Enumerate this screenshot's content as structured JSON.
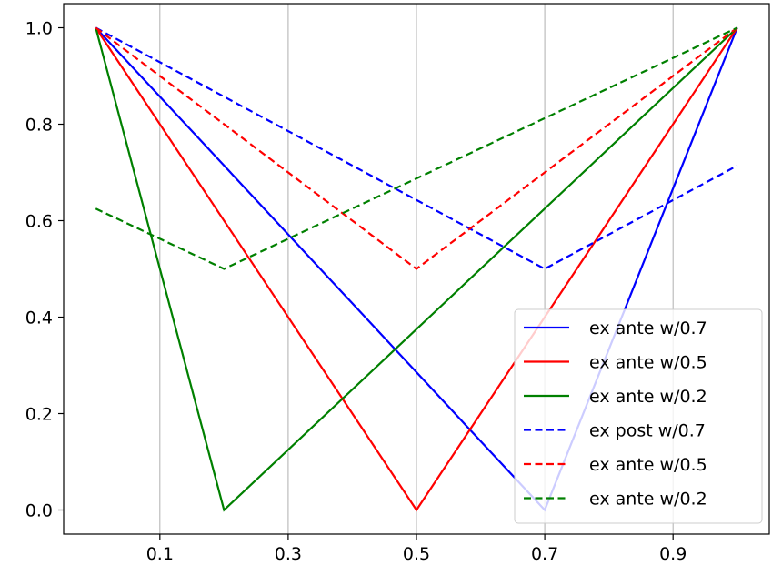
{
  "chart_data": {
    "type": "line",
    "title": "",
    "xlabel": "",
    "ylabel": "",
    "xlim": [
      -0.05,
      1.05
    ],
    "ylim": [
      -0.05,
      1.05
    ],
    "grid": "vertical",
    "legend_position": "lower-right",
    "xticks": [
      {
        "value": 0.1,
        "label": "0.1"
      },
      {
        "value": 0.3,
        "label": "0.3"
      },
      {
        "value": 0.5,
        "label": "0.5"
      },
      {
        "value": 0.7,
        "label": "0.7"
      },
      {
        "value": 0.9,
        "label": "0.9"
      }
    ],
    "yticks": [
      {
        "value": 0.0,
        "label": "0.0"
      },
      {
        "value": 0.2,
        "label": "0.2"
      },
      {
        "value": 0.4,
        "label": "0.4"
      },
      {
        "value": 0.6,
        "label": "0.6"
      },
      {
        "value": 0.8,
        "label": "0.8"
      },
      {
        "value": 1.0,
        "label": "1.0"
      }
    ],
    "series": [
      {
        "name": "ex ante w/0.7",
        "color": "#0000ff",
        "style": "solid",
        "x": [
          0.0,
          0.7,
          1.0
        ],
        "y": [
          1.0,
          0.0,
          1.0
        ]
      },
      {
        "name": "ex ante w/0.5",
        "color": "#ff0000",
        "style": "solid",
        "x": [
          0.0,
          0.5,
          1.0
        ],
        "y": [
          1.0,
          0.0,
          1.0
        ]
      },
      {
        "name": "ex ante w/0.2",
        "color": "#008000",
        "style": "solid",
        "x": [
          0.0,
          0.2,
          1.0
        ],
        "y": [
          1.0,
          0.0,
          1.0
        ]
      },
      {
        "name": "ex post w/0.7",
        "color": "#0000ff",
        "style": "dashed",
        "x": [
          0.0,
          0.7,
          1.0
        ],
        "y": [
          1.0,
          0.5,
          0.714
        ]
      },
      {
        "name": "ex ante w/0.5",
        "color": "#ff0000",
        "style": "dashed",
        "x": [
          0.0,
          0.5,
          1.0
        ],
        "y": [
          1.0,
          0.5,
          1.0
        ]
      },
      {
        "name": "ex ante w/0.2",
        "color": "#008000",
        "style": "dashed",
        "x": [
          0.0,
          0.2,
          1.0
        ],
        "y": [
          0.625,
          0.5,
          1.0
        ]
      }
    ]
  }
}
